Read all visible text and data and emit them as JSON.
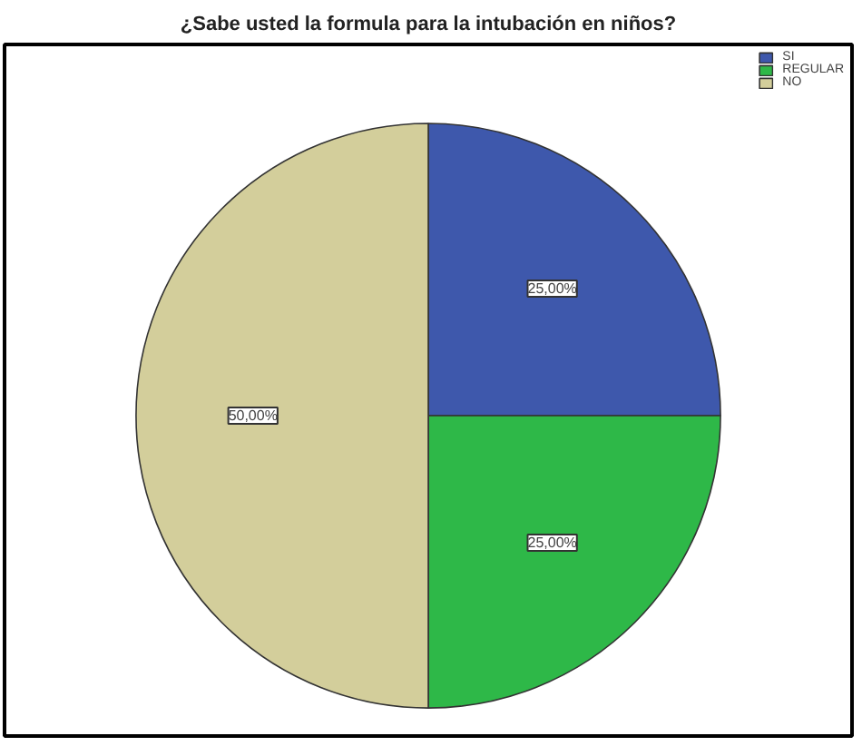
{
  "chart_data": {
    "type": "pie",
    "title": "¿Sabe usted la formula para la intubación en niños?",
    "categories": [
      "SI",
      "REGULAR",
      "NO"
    ],
    "values": [
      25,
      25,
      50
    ],
    "colors": [
      "#3e58ac",
      "#2eb848",
      "#d3ce9b"
    ],
    "value_labels": [
      "25,00%",
      "25,00%",
      "50,00%"
    ],
    "legend": "top right"
  }
}
